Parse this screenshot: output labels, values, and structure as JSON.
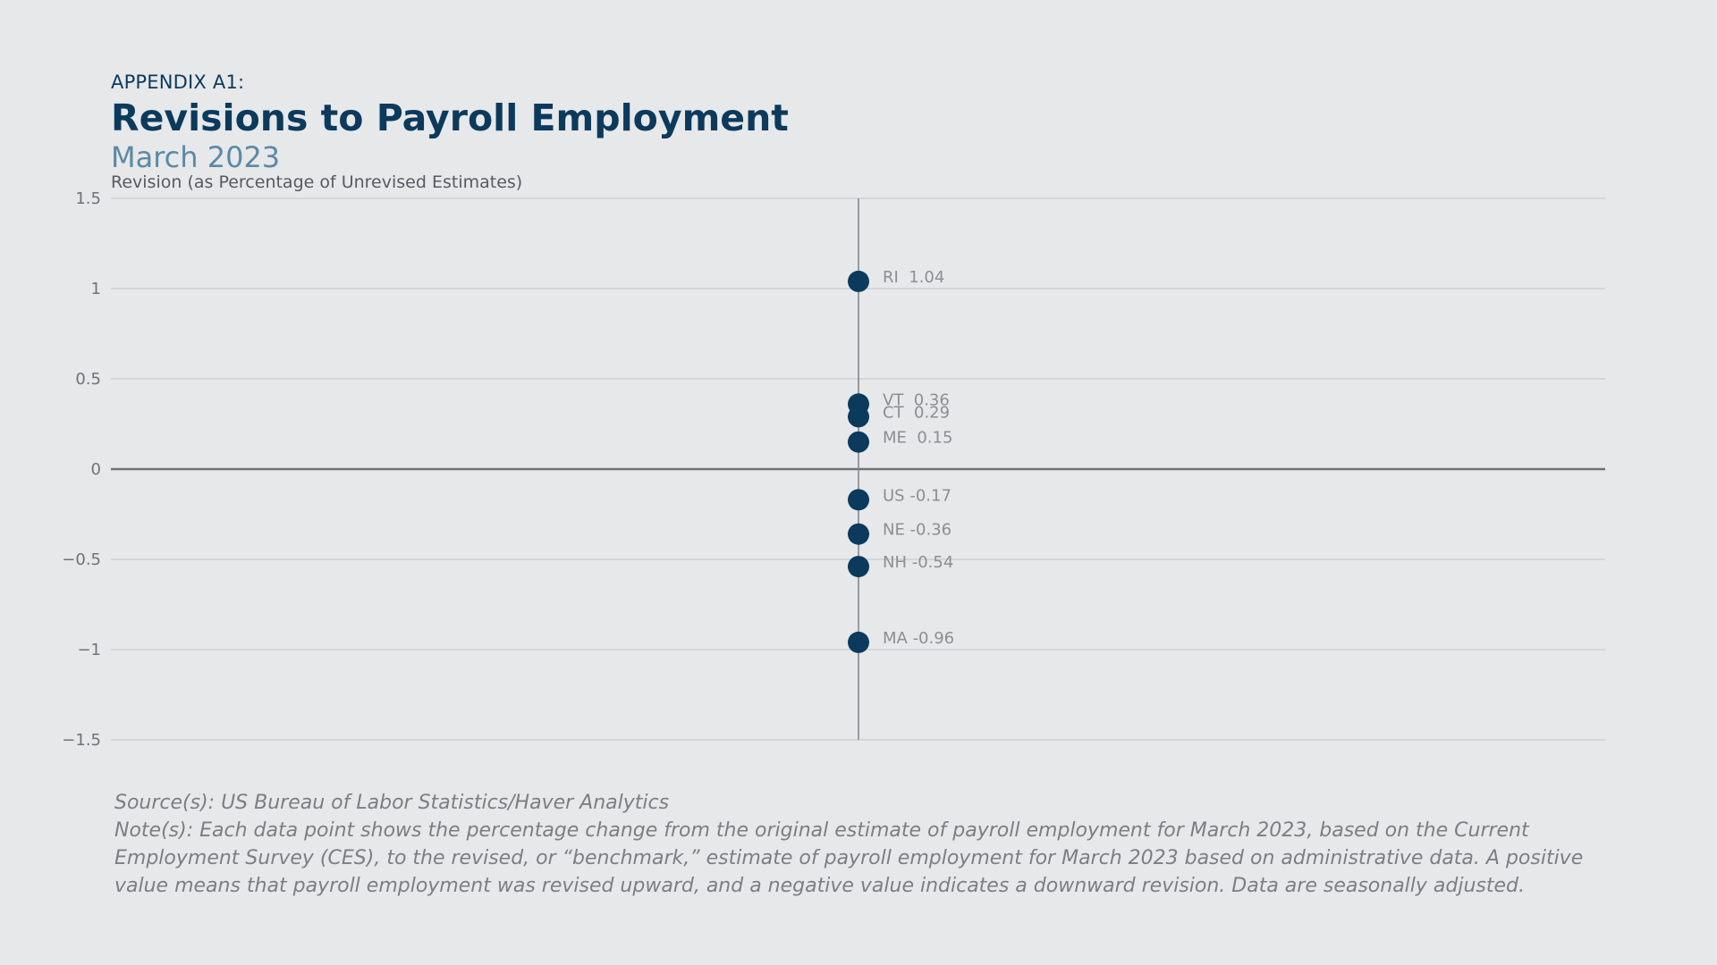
{
  "header": {
    "eyebrow": "APPENDIX A1:",
    "title": "Revisions to Payroll Employment",
    "subtitle": "March 2023"
  },
  "chart_data": {
    "type": "scatter",
    "ylabel": "Revision (as Percentage of Unrevised Estimates)",
    "ylim": [
      -1.5,
      1.5
    ],
    "yticks": [
      1.5,
      1,
      0.5,
      0,
      -0.5,
      -1,
      -1.5
    ],
    "ytick_labels": [
      "1.5",
      "1",
      "0.5",
      "0",
      "−0.5",
      "−1",
      "−1.5"
    ],
    "grid": true,
    "marker_color": "#0b3a5c",
    "points": [
      {
        "label": "RI",
        "value": 1.04,
        "text": "RI  1.04"
      },
      {
        "label": "VT",
        "value": 0.36,
        "text": "VT  0.36"
      },
      {
        "label": "CT",
        "value": 0.29,
        "text": "CT  0.29"
      },
      {
        "label": "ME",
        "value": 0.15,
        "text": "ME  0.15"
      },
      {
        "label": "US",
        "value": -0.17,
        "text": "US -0.17"
      },
      {
        "label": "NE",
        "value": -0.36,
        "text": "NE -0.36"
      },
      {
        "label": "NH",
        "value": -0.54,
        "text": "NH -0.54"
      },
      {
        "label": "MA",
        "value": -0.96,
        "text": "MA -0.96"
      }
    ]
  },
  "footer": {
    "source": "Source(s): US Bureau of Labor Statistics/Haver Analytics",
    "note": "Note(s): Each data point shows the percentage change from the original estimate of payroll employment for March 2023, based on the Current Employment Survey (CES), to the revised, or “benchmark,” estimate of payroll employment for March 2023 based on administrative data. A positive value means that payroll employment was revised upward, and a negative value indicates a downward revision. Data are seasonally adjusted."
  }
}
